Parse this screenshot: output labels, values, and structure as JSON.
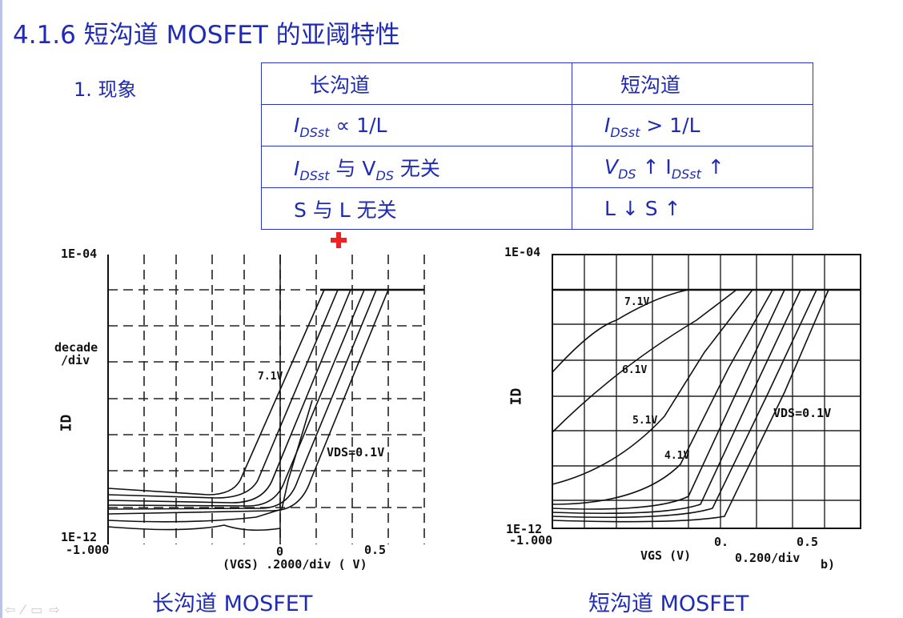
{
  "slide": {
    "title": "4.1.6 短沟道 MOSFET 的亚阈特性",
    "subheading": "1. 现象"
  },
  "table": {
    "header_long": "长沟道",
    "header_short": "短沟道",
    "row1_long_pre": "I",
    "row1_long_sub": "DSst",
    "row1_long_post": " ∝ 1/L",
    "row1_short_pre": "I",
    "row1_short_sub": "DSst",
    "row1_short_post": " > 1/L",
    "row2_long_a": "I",
    "row2_long_a_sub": "DSst",
    "row2_long_mid": " 与 V",
    "row2_long_b_sub": "DS",
    "row2_long_post": " 无关",
    "row2_short_a": "V",
    "row2_short_a_sub": "DS",
    "row2_short_mid": " ↑  I",
    "row2_short_b_sub": "DSst",
    "row2_short_post": " ↑",
    "row3_long": "S 与 L 无关",
    "row3_short": "L ↓      S ↑"
  },
  "plot_long": {
    "y_top": "1E-04",
    "y_bottom": "1E-12",
    "decade1": "decade",
    "decade2": "/div",
    "y_axis": "ID",
    "x_left": "-1.000",
    "x_zero": "0",
    "x_half": "0.5",
    "x_axis": "(VGS) .2000/div   ( V)",
    "curve_label": "7.1V",
    "vds_label": "VDS=0.1V",
    "caption": "长沟道 MOSFET"
  },
  "plot_short": {
    "y_top": "1E-04",
    "y_bottom": "1E-12",
    "y_axis": "ID",
    "x_left": "-1.000",
    "x_zero": "0.",
    "x_half": "0.5",
    "x_axis": "VGS (V)",
    "x_div": "0.200/div",
    "panel": "b)",
    "labels": [
      "7.1V",
      "6.1V",
      "5.1V",
      "4.1V"
    ],
    "vds_label": "VDS=0.1V",
    "caption": "短沟道 MOSFET"
  },
  "colors": {
    "text": "#1f2bb4",
    "accent": "#e22222"
  },
  "nav_icons": [
    "arrow-left-icon",
    "pen-icon",
    "menu-icon",
    "arrow-right-icon"
  ]
}
